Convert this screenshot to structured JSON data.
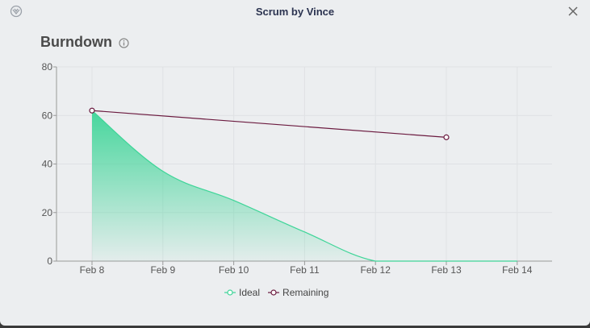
{
  "app": {
    "title": "Scrum by Vince"
  },
  "heading": {
    "title": "Burndown"
  },
  "icons": {
    "app_logo": "app-logo-icon",
    "info": "info-icon",
    "close": "close-icon"
  },
  "colors": {
    "ideal": "#3ed598",
    "remaining": "#6b1a3f",
    "grid": "#dfe1e4",
    "axis": "#999999"
  },
  "chart_data": {
    "type": "line",
    "title": "Burndown",
    "xlabel": "",
    "ylabel": "",
    "x": [
      "Feb 8",
      "Feb 9",
      "Feb 10",
      "Feb 11",
      "Feb 12",
      "Feb 13",
      "Feb 14"
    ],
    "ylim": [
      0,
      80
    ],
    "yticks": [
      0,
      20,
      40,
      60,
      80
    ],
    "grid": true,
    "legend_position": "bottom",
    "series": [
      {
        "name": "Ideal",
        "style": "area-gradient",
        "values": [
          62,
          37,
          25,
          12,
          0,
          0,
          0
        ]
      },
      {
        "name": "Remaining",
        "style": "line-markers",
        "points": [
          [
            "Feb 8",
            62
          ],
          [
            "Feb 13",
            51
          ]
        ]
      }
    ]
  }
}
